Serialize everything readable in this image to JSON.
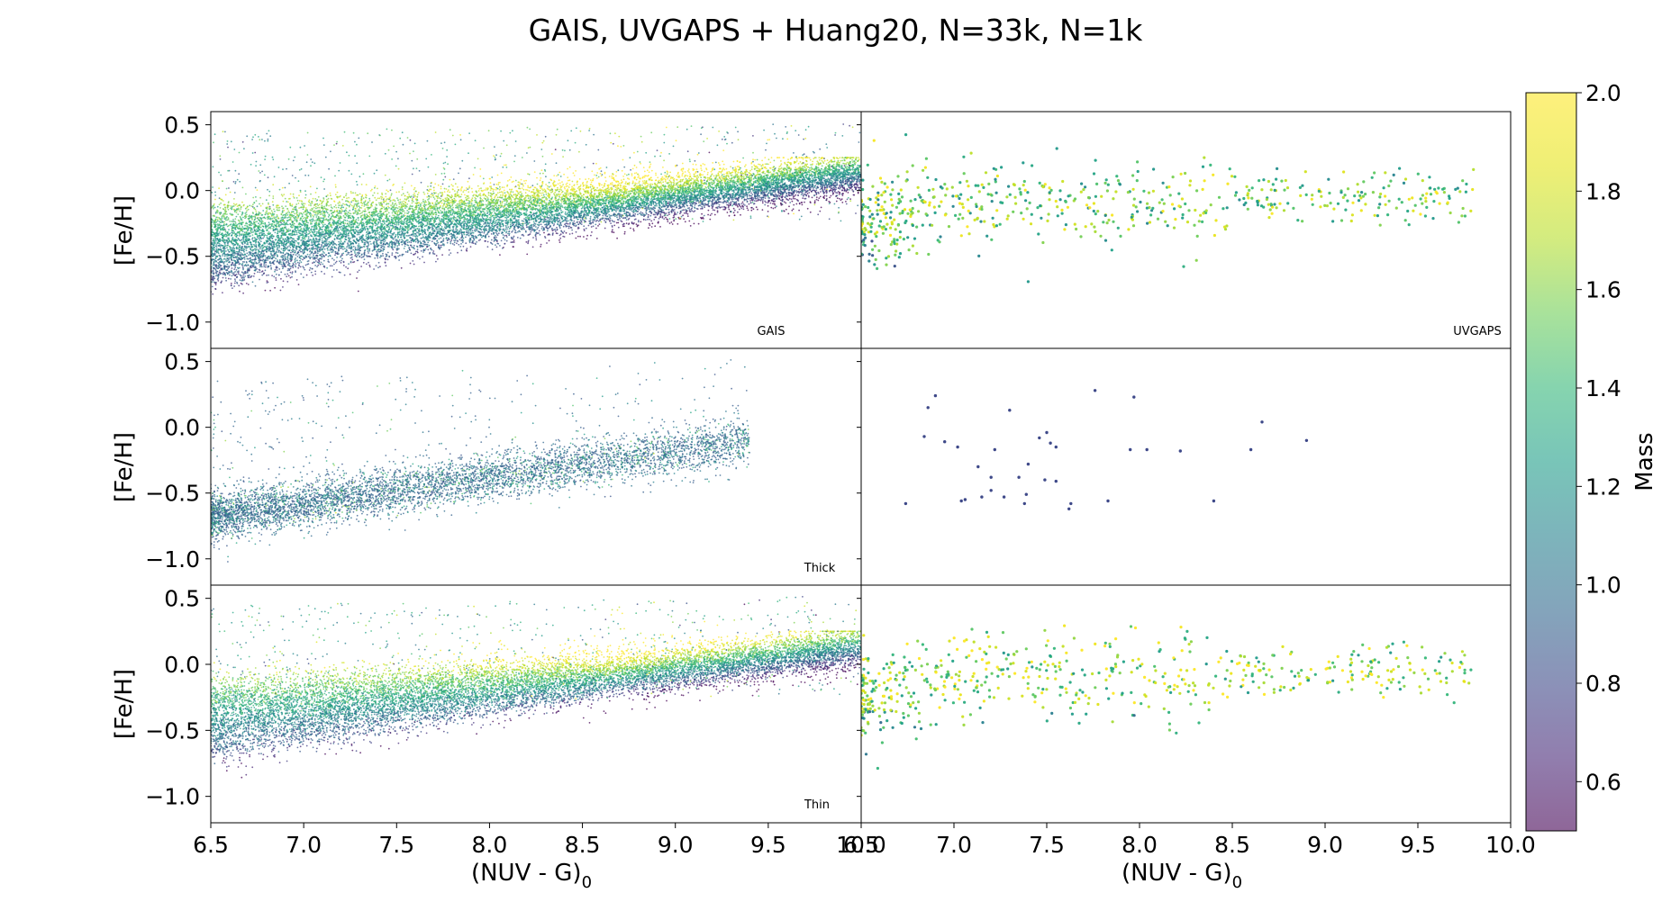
{
  "title": "GAIS, UVGAPS + Huang20, N=33k, N=1k",
  "colorbar": {
    "label": "Mass",
    "range": [
      0.5,
      2.0
    ],
    "ticks": [
      "0.6",
      "0.8",
      "1.0",
      "1.2",
      "1.4",
      "1.6",
      "1.8",
      "2.0"
    ],
    "tick_values": [
      0.6,
      0.8,
      1.0,
      1.2,
      1.4,
      1.6,
      1.8,
      2.0
    ],
    "colormap": "viridis",
    "alpha": 0.6
  },
  "axes": {
    "xlabel_left": "(NUV - G)",
    "xlabel_right": "(NUV - G)",
    "xlabel_subscript": "0",
    "ylabel": "[Fe/H]",
    "xlim": [
      6.5,
      10.0
    ],
    "ylim": [
      -1.2,
      0.6
    ],
    "x_ticks": [
      "6.5",
      "7.0",
      "7.5",
      "8.0",
      "8.5",
      "9.0",
      "9.5",
      "10.0"
    ],
    "x_tick_values": [
      6.5,
      7.0,
      7.5,
      8.0,
      8.5,
      9.0,
      9.5,
      10.0
    ],
    "y_ticks": [
      "0.5",
      "0.0",
      "−0.5",
      "−1.0"
    ],
    "y_tick_values": [
      0.5,
      0.0,
      -0.5,
      -1.0
    ]
  },
  "panels": {
    "gais": "GAIS",
    "uvgaps": "UVGAPS",
    "thick": "Thick",
    "thin": "Thin"
  },
  "chart_data": [
    {
      "type": "scatter",
      "panel": "row1-left",
      "annotation": "GAIS",
      "description_trend": "dense positive trend",
      "approx_trend": {
        "x": [
          6.5,
          7.0,
          7.5,
          8.0,
          8.5,
          9.0,
          9.5,
          10.0
        ],
        "y_metal_poor": [
          -0.65,
          -0.58,
          -0.48,
          -0.38,
          -0.28,
          -0.17,
          -0.05,
          0.12
        ],
        "y_metal_rich": [
          -0.25,
          -0.15,
          -0.1,
          -0.05,
          -0.05,
          -0.02,
          0.05,
          0.15
        ]
      },
      "approx_points": 24000,
      "xlim": [
        6.5,
        10.0
      ],
      "ylim": [
        -1.2,
        0.6
      ]
    },
    {
      "type": "scatter",
      "panel": "row1-right",
      "annotation": "UVGAPS",
      "approx_points": 1000,
      "xlim": [
        6.5,
        10.0
      ],
      "ylim": [
        -1.2,
        0.6
      ]
    },
    {
      "type": "scatter",
      "panel": "row2-left",
      "annotation": "Thick",
      "approx_trend": {
        "x": [
          6.5,
          7.0,
          7.5,
          8.0,
          8.5,
          9.0
        ],
        "y": [
          -0.68,
          -0.58,
          -0.45,
          -0.33,
          -0.25,
          -0.18
        ]
      },
      "xlim": [
        6.5,
        10.0
      ],
      "ylim": [
        -1.2,
        0.6
      ]
    },
    {
      "type": "scatter",
      "panel": "row2-right",
      "points": [
        {
          "x": 6.86,
          "y": 0.15
        },
        {
          "x": 6.9,
          "y": 0.24
        },
        {
          "x": 6.84,
          "y": -0.07
        },
        {
          "x": 6.95,
          "y": -0.11
        },
        {
          "x": 7.02,
          "y": -0.15
        },
        {
          "x": 7.22,
          "y": -0.17
        },
        {
          "x": 7.3,
          "y": 0.13
        },
        {
          "x": 7.46,
          "y": -0.08
        },
        {
          "x": 7.5,
          "y": -0.04
        },
        {
          "x": 7.52,
          "y": -0.12
        },
        {
          "x": 7.55,
          "y": -0.15
        },
        {
          "x": 7.4,
          "y": -0.28
        },
        {
          "x": 7.35,
          "y": -0.38
        },
        {
          "x": 7.49,
          "y": -0.4
        },
        {
          "x": 7.55,
          "y": -0.41
        },
        {
          "x": 7.13,
          "y": -0.3
        },
        {
          "x": 7.2,
          "y": -0.38
        },
        {
          "x": 7.2,
          "y": -0.48
        },
        {
          "x": 7.39,
          "y": -0.51
        },
        {
          "x": 7.27,
          "y": -0.53
        },
        {
          "x": 7.04,
          "y": -0.56
        },
        {
          "x": 7.06,
          "y": -0.55
        },
        {
          "x": 6.74,
          "y": -0.58
        },
        {
          "x": 7.38,
          "y": -0.58
        },
        {
          "x": 7.63,
          "y": -0.58
        },
        {
          "x": 7.83,
          "y": -0.56
        },
        {
          "x": 7.76,
          "y": 0.28
        },
        {
          "x": 7.97,
          "y": 0.23
        },
        {
          "x": 7.95,
          "y": -0.17
        },
        {
          "x": 8.04,
          "y": -0.17
        },
        {
          "x": 8.22,
          "y": -0.18
        },
        {
          "x": 8.4,
          "y": -0.56
        },
        {
          "x": 8.6,
          "y": -0.17
        },
        {
          "x": 8.66,
          "y": 0.04
        },
        {
          "x": 8.9,
          "y": -0.1
        },
        {
          "x": 7.62,
          "y": -0.62
        },
        {
          "x": 7.15,
          "y": -0.53
        }
      ],
      "xlim": [
        6.5,
        10.0
      ],
      "ylim": [
        -1.2,
        0.6
      ]
    },
    {
      "type": "scatter",
      "panel": "row3-left",
      "annotation": "Thin",
      "xlim": [
        6.5,
        10.0
      ],
      "ylim": [
        -1.2,
        0.6
      ]
    },
    {
      "type": "scatter",
      "panel": "row3-right",
      "xlim": [
        6.5,
        10.0
      ],
      "ylim": [
        -1.2,
        0.6
      ]
    }
  ]
}
